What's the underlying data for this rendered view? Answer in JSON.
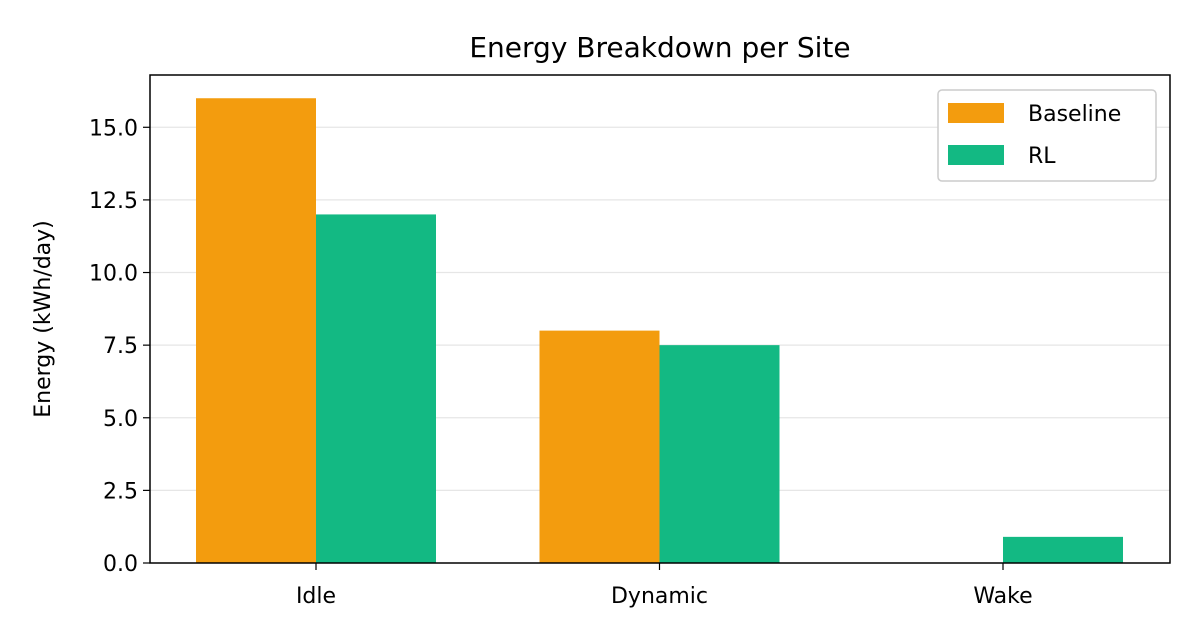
{
  "chart_data": {
    "type": "bar",
    "title": "Energy Breakdown per Site",
    "xlabel": "",
    "ylabel": "Energy (kWh/day)",
    "categories": [
      "Idle",
      "Dynamic",
      "Wake"
    ],
    "series": [
      {
        "name": "Baseline",
        "values": [
          16.0,
          8.0,
          0.0
        ],
        "color": "#f39c0e"
      },
      {
        "name": "RL",
        "values": [
          12.0,
          7.5,
          0.9
        ],
        "color": "#13b983"
      }
    ],
    "ylim": [
      0,
      16.8
    ],
    "yticks": [
      0.0,
      2.5,
      5.0,
      7.5,
      10.0,
      12.5,
      15.0
    ],
    "ytick_labels": [
      "0.0",
      "2.5",
      "5.0",
      "7.5",
      "10.0",
      "12.5",
      "15.0"
    ],
    "grid": "horizontal",
    "legend_position": "top-right"
  }
}
